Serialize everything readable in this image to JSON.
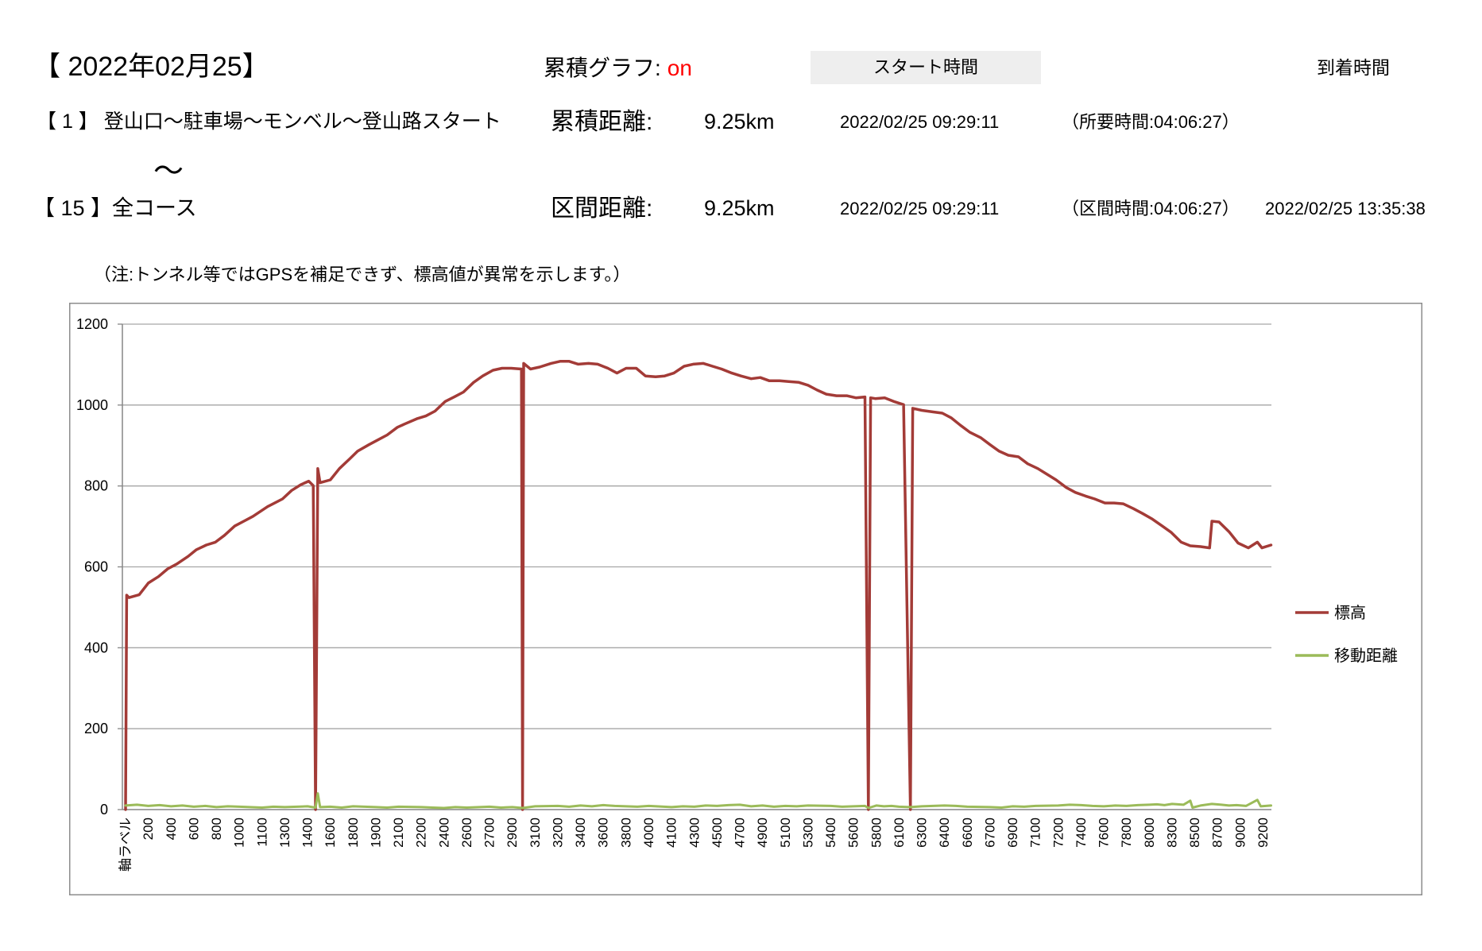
{
  "header": {
    "date": "【 2022年02月25】",
    "graph_label": "累積グラフ:",
    "graph_value": "on",
    "start_time_label": "スタート時間",
    "arrival_time_label": "到着時間"
  },
  "row_from": {
    "section": "【 1 】 登山口～駐車場～モンベル～登山路スタート",
    "distance_label": "累積距離:",
    "distance": "9.25km",
    "start_time": "2022/02/25 09:29:11",
    "duration": "（所要時間:04:06:27）"
  },
  "tilde": "～",
  "row_to": {
    "section": "【 15 】全コース",
    "distance_label": "区間距離:",
    "distance": "9.25km",
    "start_time": "2022/02/25 09:29:11",
    "duration": "（区間時間:04:06:27）",
    "arrival_time": "2022/02/25 13:35:38"
  },
  "note": "（注:トンネル等ではGPSを補足できず、標高値が異常を示します。）",
  "colors": {
    "toggle_on": "#ff0000"
  },
  "chart_data": {
    "type": "line",
    "title": "",
    "xlabel": "",
    "ylabel": "",
    "ylim": [
      0,
      1200
    ],
    "y_ticks": [
      0,
      200,
      400,
      600,
      800,
      1000,
      1200
    ],
    "grid": true,
    "legend": "right",
    "x_tick_labels": [
      "軸ラベル",
      "200",
      "400",
      "600",
      "800",
      "1000",
      "1100",
      "1300",
      "1400",
      "1600",
      "1800",
      "1900",
      "2100",
      "2200",
      "2400",
      "2600",
      "2700",
      "2900",
      "3100",
      "3200",
      "3400",
      "3600",
      "3800",
      "4000",
      "4100",
      "4300",
      "4500",
      "4700",
      "4900",
      "5100",
      "5300",
      "5400",
      "5600",
      "5800",
      "6100",
      "6300",
      "6400",
      "6600",
      "6700",
      "6900",
      "7100",
      "7200",
      "7400",
      "7600",
      "7800",
      "8000",
      "8300",
      "8500",
      "8700",
      "9000",
      "9200"
    ],
    "series": [
      {
        "name": "標高",
        "color": "#a33b37",
        "points": [
          [
            0,
            0
          ],
          [
            10,
            530
          ],
          [
            30,
            524
          ],
          [
            120,
            531
          ],
          [
            200,
            560
          ],
          [
            290,
            576
          ],
          [
            370,
            595
          ],
          [
            450,
            607
          ],
          [
            550,
            626
          ],
          [
            620,
            642
          ],
          [
            710,
            654
          ],
          [
            790,
            661
          ],
          [
            870,
            678
          ],
          [
            960,
            701
          ],
          [
            1020,
            713
          ],
          [
            1060,
            725
          ],
          [
            1150,
            749
          ],
          [
            1280,
            768
          ],
          [
            1330,
            789
          ],
          [
            1370,
            803
          ],
          [
            1410,
            812
          ],
          [
            1450,
            801
          ],
          [
            1470,
            0
          ],
          [
            1490,
            843
          ],
          [
            1510,
            808
          ],
          [
            1600,
            815
          ],
          [
            1680,
            843
          ],
          [
            1770,
            867
          ],
          [
            1820,
            886
          ],
          [
            1870,
            902
          ],
          [
            1920,
            914
          ],
          [
            2000,
            926
          ],
          [
            2090,
            945
          ],
          [
            2130,
            954
          ],
          [
            2180,
            966
          ],
          [
            2240,
            973
          ],
          [
            2320,
            985
          ],
          [
            2410,
            1009
          ],
          [
            2490,
            1020
          ],
          [
            2570,
            1032
          ],
          [
            2630,
            1056
          ],
          [
            2670,
            1072
          ],
          [
            2730,
            1086
          ],
          [
            2810,
            1091
          ],
          [
            2890,
            1091
          ],
          [
            2980,
            1089
          ],
          [
            2990,
            0
          ],
          [
            3000,
            1103
          ],
          [
            3060,
            1089
          ],
          [
            3120,
            1094
          ],
          [
            3170,
            1103
          ],
          [
            3220,
            1108
          ],
          [
            3300,
            1108
          ],
          [
            3380,
            1101
          ],
          [
            3470,
            1103
          ],
          [
            3550,
            1101
          ],
          [
            3640,
            1091
          ],
          [
            3720,
            1079
          ],
          [
            3800,
            1091
          ],
          [
            3890,
            1091
          ],
          [
            3970,
            1072
          ],
          [
            4030,
            1070
          ],
          [
            4070,
            1072
          ],
          [
            4120,
            1079
          ],
          [
            4210,
            1096
          ],
          [
            4290,
            1101
          ],
          [
            4380,
            1103
          ],
          [
            4460,
            1096
          ],
          [
            4540,
            1089
          ],
          [
            4630,
            1079
          ],
          [
            4710,
            1072
          ],
          [
            4800,
            1065
          ],
          [
            4880,
            1068
          ],
          [
            4960,
            1060
          ],
          [
            5050,
            1060
          ],
          [
            5130,
            1058
          ],
          [
            5220,
            1056
          ],
          [
            5300,
            1049
          ],
          [
            5340,
            1037
          ],
          [
            5380,
            1027
          ],
          [
            5450,
            1023
          ],
          [
            5540,
            1023
          ],
          [
            5620,
            1018
          ],
          [
            5700,
            1020
          ],
          [
            5730,
            0
          ],
          [
            5750,
            1018
          ],
          [
            5790,
            1016
          ],
          [
            5910,
            1018
          ],
          [
            6030,
            1009
          ],
          [
            6140,
            1001
          ],
          [
            6200,
            0
          ],
          [
            6220,
            992
          ],
          [
            6300,
            987
          ],
          [
            6350,
            983
          ],
          [
            6390,
            980
          ],
          [
            6460,
            968
          ],
          [
            6540,
            950
          ],
          [
            6610,
            933
          ],
          [
            6660,
            919
          ],
          [
            6700,
            902
          ],
          [
            6780,
            886
          ],
          [
            6860,
            876
          ],
          [
            6950,
            872
          ],
          [
            7030,
            855
          ],
          [
            7110,
            843
          ],
          [
            7150,
            829
          ],
          [
            7190,
            815
          ],
          [
            7270,
            796
          ],
          [
            7350,
            784
          ],
          [
            7440,
            775
          ],
          [
            7520,
            768
          ],
          [
            7610,
            758
          ],
          [
            7690,
            758
          ],
          [
            7770,
            756
          ],
          [
            7860,
            744
          ],
          [
            7940,
            732
          ],
          [
            8040,
            718
          ],
          [
            8170,
            701
          ],
          [
            8290,
            685
          ],
          [
            8380,
            661
          ],
          [
            8460,
            652
          ],
          [
            8550,
            650
          ],
          [
            8630,
            647
          ],
          [
            8650,
            713
          ],
          [
            8720,
            711
          ],
          [
            8850,
            687
          ],
          [
            8970,
            659
          ],
          [
            9070,
            647
          ],
          [
            9150,
            661
          ],
          [
            9190,
            647
          ],
          [
            9270,
            654
          ]
        ]
      },
      {
        "name": "移動距離",
        "color": "#9bbb59",
        "points": [
          [
            0,
            10
          ],
          [
            100,
            12
          ],
          [
            200,
            9
          ],
          [
            300,
            11
          ],
          [
            400,
            8
          ],
          [
            500,
            10
          ],
          [
            600,
            7
          ],
          [
            700,
            9
          ],
          [
            800,
            6
          ],
          [
            900,
            8
          ],
          [
            1000,
            7
          ],
          [
            1100,
            5
          ],
          [
            1200,
            7
          ],
          [
            1300,
            6
          ],
          [
            1400,
            8
          ],
          [
            1470,
            5
          ],
          [
            1490,
            40
          ],
          [
            1510,
            6
          ],
          [
            1600,
            7
          ],
          [
            1700,
            5
          ],
          [
            1800,
            8
          ],
          [
            1900,
            6
          ],
          [
            2000,
            5
          ],
          [
            2100,
            7
          ],
          [
            2200,
            6
          ],
          [
            2300,
            5
          ],
          [
            2400,
            4
          ],
          [
            2500,
            6
          ],
          [
            2600,
            5
          ],
          [
            2700,
            7
          ],
          [
            2800,
            5
          ],
          [
            2900,
            6
          ],
          [
            2990,
            4
          ],
          [
            3100,
            8
          ],
          [
            3200,
            9
          ],
          [
            3300,
            7
          ],
          [
            3400,
            10
          ],
          [
            3500,
            8
          ],
          [
            3600,
            11
          ],
          [
            3700,
            9
          ],
          [
            3800,
            8
          ],
          [
            3900,
            7
          ],
          [
            4000,
            9
          ],
          [
            4100,
            6
          ],
          [
            4200,
            8
          ],
          [
            4300,
            7
          ],
          [
            4400,
            10
          ],
          [
            4500,
            9
          ],
          [
            4600,
            11
          ],
          [
            4700,
            12
          ],
          [
            4800,
            8
          ],
          [
            4900,
            10
          ],
          [
            5000,
            7
          ],
          [
            5100,
            9
          ],
          [
            5200,
            8
          ],
          [
            5300,
            10
          ],
          [
            5400,
            9
          ],
          [
            5500,
            7
          ],
          [
            5600,
            8
          ],
          [
            5700,
            9
          ],
          [
            5730,
            4
          ],
          [
            5800,
            10
          ],
          [
            5900,
            8
          ],
          [
            6000,
            9
          ],
          [
            6100,
            7
          ],
          [
            6200,
            6
          ],
          [
            6300,
            8
          ],
          [
            6400,
            10
          ],
          [
            6500,
            9
          ],
          [
            6600,
            7
          ],
          [
            6700,
            6
          ],
          [
            6800,
            5
          ],
          [
            6900,
            8
          ],
          [
            7000,
            7
          ],
          [
            7100,
            9
          ],
          [
            7200,
            10
          ],
          [
            7300,
            12
          ],
          [
            7400,
            11
          ],
          [
            7500,
            9
          ],
          [
            7600,
            8
          ],
          [
            7700,
            10
          ],
          [
            7800,
            9
          ],
          [
            7900,
            11
          ],
          [
            8000,
            12
          ],
          [
            8100,
            13
          ],
          [
            8200,
            11
          ],
          [
            8300,
            14
          ],
          [
            8400,
            12
          ],
          [
            8460,
            22
          ],
          [
            8480,
            5
          ],
          [
            8550,
            10
          ],
          [
            8650,
            14
          ],
          [
            8750,
            12
          ],
          [
            8850,
            10
          ],
          [
            8950,
            11
          ],
          [
            9050,
            9
          ],
          [
            9150,
            24
          ],
          [
            9180,
            8
          ],
          [
            9270,
            10
          ]
        ]
      }
    ]
  }
}
